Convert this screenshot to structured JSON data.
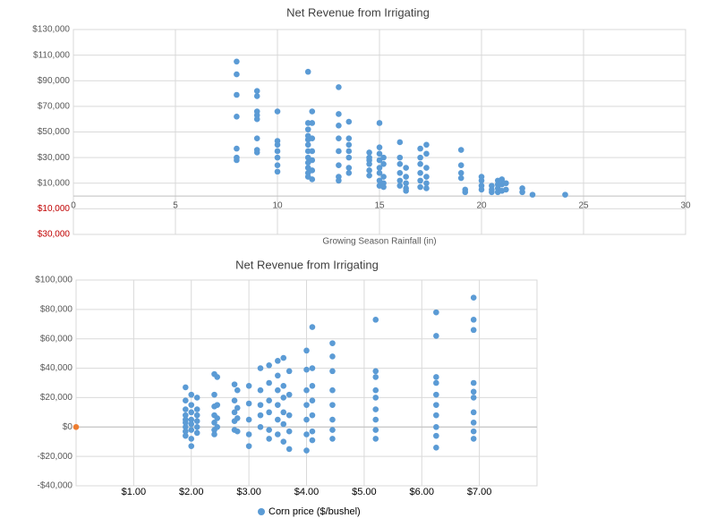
{
  "chart_data": [
    {
      "type": "scatter",
      "title": "Net Revenue from Irrigating",
      "x_label": "Growing Season Rainfall (in)",
      "xlim": [
        0,
        30
      ],
      "xticks": [
        0,
        5,
        10,
        15,
        20,
        25,
        30
      ],
      "ylim": [
        -30000,
        130000
      ],
      "yticks": [
        {
          "value": 130000,
          "label": "$130,000"
        },
        {
          "value": 110000,
          "label": "$110,000"
        },
        {
          "value": 90000,
          "label": "$90,000"
        },
        {
          "value": 70000,
          "label": "$70,000"
        },
        {
          "value": 50000,
          "label": "$50,000"
        },
        {
          "value": 30000,
          "label": "$30,000"
        },
        {
          "value": 10000,
          "label": "$10,000"
        },
        {
          "value": -10000,
          "label": "$10,000"
        },
        {
          "value": -30000,
          "label": "$30,000"
        }
      ],
      "negative_label_color": "#c00000",
      "grid": true,
      "series": [
        {
          "color": "#5b9bd5",
          "x": [
            8,
            8,
            8,
            8,
            8,
            8,
            8,
            9,
            9,
            9,
            9,
            9,
            9,
            9,
            9,
            10,
            10,
            10,
            10,
            10,
            10,
            10,
            11.5,
            11.5,
            11.5,
            11.5,
            11.5,
            11.5,
            11.5,
            11.5,
            11.5,
            11.5,
            11.5,
            11.5,
            11.7,
            11.7,
            11.7,
            11.7,
            11.7,
            11.7,
            11.7,
            13,
            13,
            13,
            13,
            13,
            13,
            13,
            13,
            13.5,
            13.5,
            13.5,
            13.5,
            13.5,
            13.5,
            13.5,
            14.5,
            14.5,
            14.5,
            14.5,
            14.5,
            14.5,
            15,
            15,
            15,
            15,
            15,
            15,
            15,
            15,
            15.2,
            15.2,
            15.2,
            15.2,
            15.2,
            16,
            16,
            16,
            16,
            16,
            16,
            16.3,
            16.3,
            16.3,
            16.3,
            16.3,
            17,
            17,
            17,
            17,
            17,
            17,
            17.3,
            17.3,
            17.3,
            17.3,
            17.3,
            17.3,
            19,
            19,
            19,
            19,
            19.2,
            19.2,
            20,
            20,
            20,
            20,
            20.5,
            20.5,
            20.5,
            20.8,
            20.8,
            20.8,
            20.8,
            21,
            21,
            21,
            21.2,
            21.2,
            22,
            22,
            22.5,
            24.1
          ],
          "values": [
            105000,
            95000,
            79000,
            62000,
            37000,
            30000,
            28000,
            82000,
            78000,
            66000,
            63000,
            60000,
            45000,
            36000,
            34000,
            66000,
            43000,
            40000,
            35000,
            30000,
            24000,
            19000,
            97000,
            57000,
            52000,
            47000,
            44000,
            40000,
            35000,
            30000,
            26000,
            22000,
            18000,
            15000,
            66000,
            57000,
            45000,
            35000,
            28000,
            20000,
            13000,
            85000,
            64000,
            55000,
            45000,
            35000,
            24000,
            15000,
            12000,
            58000,
            45000,
            40000,
            35000,
            30000,
            22000,
            18000,
            34000,
            30000,
            28000,
            25000,
            20000,
            16000,
            57000,
            38000,
            33000,
            28000,
            22000,
            18000,
            12000,
            8000,
            30000,
            25000,
            15000,
            10000,
            7000,
            42000,
            30000,
            25000,
            18000,
            12000,
            8000,
            22000,
            15000,
            10000,
            6000,
            4000,
            37000,
            30000,
            25000,
            18000,
            12000,
            7000,
            40000,
            33000,
            22000,
            15000,
            10000,
            6000,
            36000,
            24000,
            18000,
            14000,
            5000,
            3000,
            15000,
            12000,
            8000,
            5000,
            8000,
            5000,
            3000,
            12000,
            9000,
            6000,
            3000,
            13000,
            9000,
            4000,
            10000,
            5000,
            6000,
            3000,
            1000,
            1000
          ]
        }
      ]
    },
    {
      "type": "scatter",
      "title": "Net Revenue from Irrigating",
      "xlim": [
        0,
        8
      ],
      "xticks": [
        {
          "value": 1,
          "label": "$1.00"
        },
        {
          "value": 2,
          "label": "$2.00"
        },
        {
          "value": 3,
          "label": "$3.00"
        },
        {
          "value": 4,
          "label": "$4.00"
        },
        {
          "value": 5,
          "label": "$5.00"
        },
        {
          "value": 6,
          "label": "$6.00"
        },
        {
          "value": 7,
          "label": "$7.00"
        }
      ],
      "ylim": [
        -40000,
        100000
      ],
      "yticks": [
        {
          "value": 100000,
          "label": "$100,000"
        },
        {
          "value": 80000,
          "label": "$80,000"
        },
        {
          "value": 60000,
          "label": "$60,000"
        },
        {
          "value": 40000,
          "label": "$40,000"
        },
        {
          "value": 20000,
          "label": "$20,000"
        },
        {
          "value": 0,
          "label": "$0"
        },
        {
          "value": -20000,
          "label": "-$20,000"
        },
        {
          "value": -40000,
          "label": "-$40,000"
        }
      ],
      "grid": true,
      "legend": "bottom",
      "series": [
        {
          "name": "Corn price ($/bushel)",
          "color": "#5b9bd5",
          "x": [
            1.9,
            1.9,
            1.9,
            1.9,
            1.9,
            1.9,
            1.9,
            1.9,
            1.9,
            2,
            2,
            2,
            2,
            2,
            2,
            2,
            2,
            2.1,
            2.1,
            2.1,
            2.1,
            2.1,
            2.1,
            2.4,
            2.4,
            2.4,
            2.4,
            2.4,
            2.4,
            2.4,
            2.45,
            2.45,
            2.45,
            2.45,
            2.75,
            2.75,
            2.75,
            2.75,
            2.75,
            2.8,
            2.8,
            2.8,
            2.8,
            3,
            3,
            3,
            3,
            3,
            3.2,
            3.2,
            3.2,
            3.2,
            3.2,
            3.35,
            3.35,
            3.35,
            3.35,
            3.35,
            3.35,
            3.5,
            3.5,
            3.5,
            3.5,
            3.5,
            3.5,
            3.6,
            3.6,
            3.6,
            3.6,
            3.6,
            3.6,
            3.7,
            3.7,
            3.7,
            3.7,
            3.7,
            4,
            4,
            4,
            4,
            4,
            4,
            4,
            4.1,
            4.1,
            4.1,
            4.1,
            4.1,
            4.1,
            4.1,
            4.45,
            4.45,
            4.45,
            4.45,
            4.45,
            4.45,
            4.45,
            4.45,
            5.2,
            5.2,
            5.2,
            5.2,
            5.2,
            5.2,
            5.2,
            5.2,
            5.2,
            6.25,
            6.25,
            6.25,
            6.25,
            6.25,
            6.25,
            6.25,
            6.25,
            6.25,
            6.25,
            6.9,
            6.9,
            6.9,
            6.9,
            6.9,
            6.9,
            6.9,
            6.9,
            6.9,
            6.9
          ],
          "values": [
            27000,
            18000,
            12000,
            8000,
            5000,
            3000,
            0,
            -3000,
            -6000,
            22000,
            15000,
            10000,
            5000,
            2000,
            -2000,
            -8000,
            -13000,
            20000,
            12000,
            8000,
            4000,
            0,
            -4000,
            36000,
            22000,
            14000,
            8000,
            3000,
            -2000,
            -5000,
            34000,
            15000,
            6000,
            0,
            29000,
            18000,
            10000,
            4000,
            -2000,
            25000,
            13000,
            6000,
            -3000,
            28000,
            16000,
            5000,
            -5000,
            -13000,
            40000,
            25000,
            15000,
            8000,
            0,
            42000,
            30000,
            18000,
            10000,
            -2000,
            -8000,
            45000,
            35000,
            25000,
            15000,
            5000,
            -5000,
            47000,
            28000,
            20000,
            10000,
            2000,
            -10000,
            38000,
            22000,
            8000,
            -3000,
            -15000,
            52000,
            39000,
            25000,
            15000,
            5000,
            -5000,
            -16000,
            68000,
            40000,
            28000,
            18000,
            8000,
            -3000,
            -9000,
            57000,
            48000,
            38000,
            25000,
            15000,
            5000,
            -2000,
            -8000,
            73000,
            38000,
            34000,
            25000,
            20000,
            12000,
            5000,
            -2000,
            -8000,
            78000,
            62000,
            34000,
            30000,
            22000,
            15000,
            8000,
            0,
            -6000,
            -14000,
            88000,
            73000,
            66000,
            30000,
            24000,
            20000,
            10000,
            3000,
            -3000,
            -8000
          ]
        },
        {
          "color": "#ed7d31",
          "x": [
            0
          ],
          "values": [
            0
          ]
        }
      ]
    }
  ]
}
